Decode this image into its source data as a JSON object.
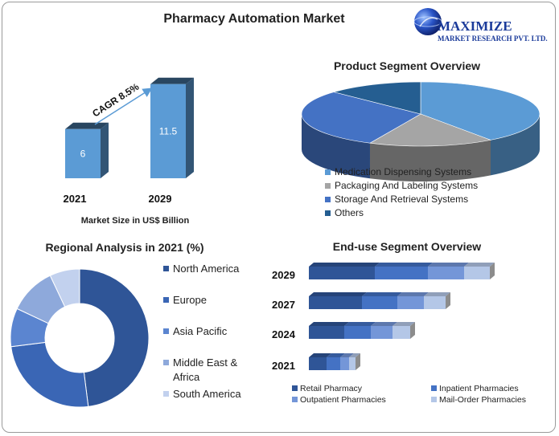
{
  "title": "Pharmacy Automation Market",
  "logo": {
    "line1": "MAXIMIZE",
    "line2": "MARKET RESEARCH PVT. LTD."
  },
  "colors": {
    "blue": "#5b9bd5",
    "navy": "#1f4e79",
    "text": "#222222"
  },
  "chart_data": [
    {
      "type": "bar",
      "categories": [
        "2021",
        "2029"
      ],
      "values": [
        6,
        11.5
      ],
      "data_labels": [
        "6",
        "11.5"
      ],
      "xlabel": "Market Size in US$ Billion",
      "annotation": "CAGR 8.5%"
    },
    {
      "type": "pie",
      "title": "Product Segment Overview",
      "labels": [
        "Medication Dispensing Systems",
        "Packaging And Labeling Systems",
        "Storage And Retrieval Systems",
        "Others"
      ],
      "values": [
        40,
        17,
        30,
        13
      ],
      "colors": [
        "#5b9bd5",
        "#a5a5a5",
        "#4472c4",
        "#255e91"
      ]
    },
    {
      "type": "pie",
      "title": "Regional Analysis in 2021 (%)",
      "labels": [
        "North America",
        "Europe",
        "Asia Pacific",
        "Middle East & Africa",
        "South America"
      ],
      "values": [
        48,
        25,
        9,
        11,
        7
      ],
      "colors": [
        "#2f5597",
        "#3a66b5",
        "#5b85d0",
        "#8ea9db",
        "#c2d1ee"
      ]
    },
    {
      "type": "bar",
      "orientation": "horizontal",
      "stacked": true,
      "title": "End-use Segment Overview",
      "categories": [
        "2029",
        "2027",
        "2024",
        "2021"
      ],
      "series": [
        {
          "name": "Retail Pharmacy",
          "values": [
            82,
            66,
            44,
            22
          ],
          "color": "#2f5597"
        },
        {
          "name": "Inpatient Pharmacies",
          "values": [
            66,
            44,
            33,
            17
          ],
          "color": "#4472c4"
        },
        {
          "name": "Outpatient Pharmacies",
          "values": [
            45,
            33,
            27,
            11
          ],
          "color": "#7496d8"
        },
        {
          "name": "Mail-Order Pharmacies",
          "values": [
            32,
            27,
            22,
            8
          ],
          "color": "#b4c7e7"
        }
      ]
    }
  ]
}
